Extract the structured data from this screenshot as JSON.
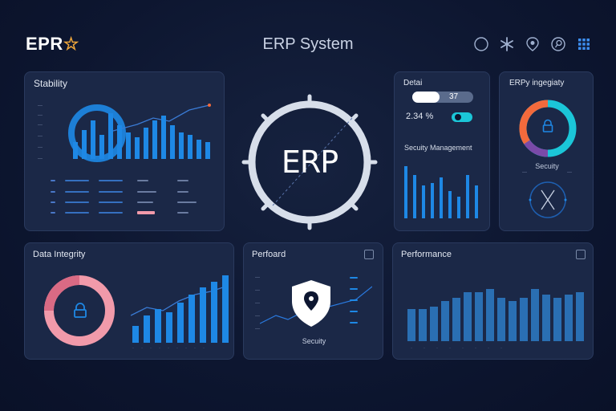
{
  "header": {
    "logo_text": "EPR",
    "title": "ERP System",
    "icons": [
      "compass-icon",
      "asterisk-icon",
      "location-icon",
      "search-icon",
      "grid-icon"
    ]
  },
  "panels": {
    "stability": {
      "title": "Stability"
    },
    "center": {
      "logo": "ERP"
    },
    "detail": {
      "title": "Detai",
      "bar_value": "37",
      "percent_text": "2.34 %",
      "section_title": "Secuity Management"
    },
    "integrity": {
      "title": "ERPy ingegiaty",
      "label": "Secuity"
    },
    "data_integrity": {
      "title": "Data Integrity"
    },
    "perfoard": {
      "title": "Perfoard",
      "label": "Secuity"
    },
    "performance": {
      "title": "Performance"
    }
  },
  "colors": {
    "accent": "#1e88e5",
    "accent_light": "#2aa3f5",
    "pink": "#f19aaa",
    "orange": "#f26a3c",
    "teal": "#1bc6d8"
  },
  "chart_data": [
    {
      "type": "bar",
      "title": "Stability",
      "values": [
        0.35,
        0.6,
        0.8,
        0.5,
        0.95,
        0.7,
        0.55,
        0.45,
        0.65,
        0.8,
        0.9,
        0.7,
        0.55,
        0.5,
        0.4,
        0.35
      ]
    },
    {
      "type": "bar",
      "title": "Secuity Management",
      "values": [
        0.95,
        0.8,
        0.6,
        0.65,
        0.75,
        0.5,
        0.4,
        0.8,
        0.6
      ]
    },
    {
      "type": "bar",
      "title": "Data Integrity",
      "values": [
        0.25,
        0.4,
        0.5,
        0.45,
        0.6,
        0.72,
        0.82,
        0.9,
        1.0
      ]
    },
    {
      "type": "bar",
      "title": "Performance",
      "values": [
        0.55,
        0.55,
        0.6,
        0.7,
        0.75,
        0.85,
        0.85,
        0.9,
        0.75,
        0.7,
        0.75,
        0.9,
        0.8,
        0.75,
        0.8,
        0.85
      ]
    }
  ]
}
